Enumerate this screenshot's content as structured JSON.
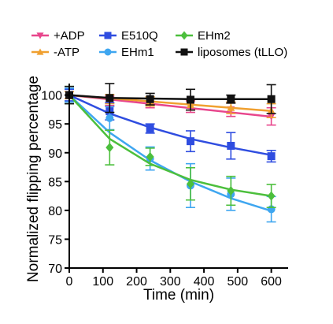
{
  "chart_data": {
    "type": "line",
    "title": "",
    "xlabel": "Time (min)",
    "ylabel": "Normalized flipping percentage",
    "xlim": [
      0,
      650
    ],
    "ylim": [
      70,
      102
    ],
    "xticks": [
      0,
      100,
      200,
      300,
      400,
      500,
      600
    ],
    "xtick_labels": [
      "0",
      "100",
      "200",
      "300",
      "400",
      "500",
      "600"
    ],
    "yticks": [
      70,
      75,
      80,
      85,
      90,
      95,
      100
    ],
    "ytick_labels": [
      "70",
      "75",
      "80",
      "85",
      "90",
      "95",
      "100"
    ],
    "x": [
      0,
      120,
      240,
      360,
      480,
      600
    ],
    "grid": false,
    "legend_position": "top",
    "series": [
      {
        "name": "+ADP",
        "color": "#e8468c",
        "marker": "triangle-down",
        "values": [
          100,
          99.0,
          98.6,
          98.0,
          97.5,
          96.3
        ],
        "errors": [
          0.6,
          0.8,
          0.8,
          1.0,
          1.2,
          1.5
        ],
        "fit": [
          100,
          99.25,
          98.5,
          97.75,
          97.0,
          96.25
        ]
      },
      {
        "name": "-ATP",
        "color": "#f0a030",
        "marker": "triangle-up",
        "values": [
          100,
          99.3,
          98.9,
          98.3,
          97.8,
          97.3
        ],
        "errors": [
          0.6,
          0.8,
          0.8,
          0.9,
          1.0,
          1.2
        ],
        "fit": [
          100,
          99.45,
          98.9,
          98.35,
          97.8,
          97.25
        ]
      },
      {
        "name": "E510Q",
        "color": "#2f4de0",
        "marker": "square",
        "values": [
          100,
          97.2,
          94.2,
          92.0,
          91.2,
          89.4
        ],
        "errors": [
          1.0,
          1.5,
          0.8,
          1.8,
          2.3,
          1.0
        ],
        "fit": [
          100,
          96.8,
          94.4,
          92.4,
          90.9,
          89.6
        ]
      },
      {
        "name": "EHm1",
        "color": "#3ea6f0",
        "marker": "circle",
        "values": [
          100,
          96.0,
          89.0,
          84.3,
          82.8,
          80.2
        ],
        "errors": [
          1.2,
          2.0,
          2.0,
          3.8,
          2.8,
          2.2
        ],
        "fit": [
          100,
          93.5,
          88.7,
          85.0,
          82.1,
          79.9
        ]
      },
      {
        "name": "EHm2",
        "color": "#4cbf3c",
        "marker": "diamond",
        "values": [
          100,
          90.9,
          89.3,
          84.6,
          83.4,
          82.5
        ],
        "errors": [
          1.5,
          3.0,
          1.5,
          2.8,
          2.5,
          2.0
        ],
        "fit": [
          100,
          92.4,
          88.1,
          85.3,
          83.6,
          82.5
        ]
      },
      {
        "name": "liposomes (tLLO)",
        "color": "#111111",
        "marker": "square",
        "values": [
          100,
          99.5,
          99.3,
          99.2,
          99.3,
          99.3
        ],
        "errors": [
          1.5,
          2.5,
          1.0,
          1.8,
          0.7,
          2.5
        ],
        "fit": [
          100,
          99.5,
          99.4,
          99.3,
          99.3,
          99.3
        ]
      }
    ]
  }
}
